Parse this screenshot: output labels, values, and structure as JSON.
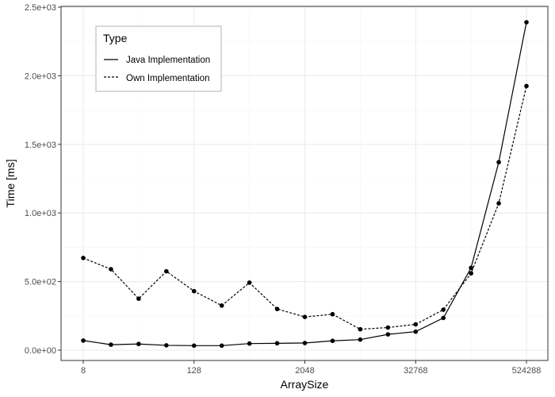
{
  "chart_data": {
    "type": "line",
    "xlabel": "ArraySize",
    "ylabel": "Time [ms]",
    "x_scale": "log2",
    "xlim": [
      8,
      524288
    ],
    "ylim": [
      0,
      2500
    ],
    "x_ticks": [
      8,
      128,
      2048,
      32768,
      524288
    ],
    "x_tick_labels": [
      "8",
      "128",
      "2048",
      "32768",
      "524288"
    ],
    "y_ticks": [
      0,
      500,
      1000,
      1500,
      2000,
      2500
    ],
    "y_tick_labels": [
      "0.0e+00",
      "5.0e+02",
      "1.0e+03",
      "1.5e+03",
      "2.0e+03",
      "2.5e+03"
    ],
    "grid": true,
    "legend": {
      "title": "Type",
      "placement": "top-left"
    },
    "x": [
      8,
      16,
      32,
      64,
      128,
      256,
      512,
      1024,
      2048,
      4096,
      8192,
      16384,
      32768,
      65536,
      131072,
      262144,
      524288
    ],
    "series": [
      {
        "name": "Java Implementation",
        "line_style": "solid",
        "values": [
          70,
          40,
          45,
          35,
          33,
          33,
          48,
          50,
          52,
          68,
          77,
          115,
          135,
          235,
          600,
          1370,
          2390
        ]
      },
      {
        "name": "Own Implementation",
        "line_style": "dashed",
        "values": [
          672,
          590,
          375,
          575,
          430,
          325,
          492,
          300,
          242,
          262,
          152,
          165,
          188,
          295,
          560,
          1070,
          1925
        ]
      }
    ]
  },
  "colors": {
    "line": "#000000",
    "grid_major": "#ebebeb",
    "grid_minor": "#f5f5f5",
    "panel_border": "#333333",
    "legend_border": "#b3b3b3"
  }
}
